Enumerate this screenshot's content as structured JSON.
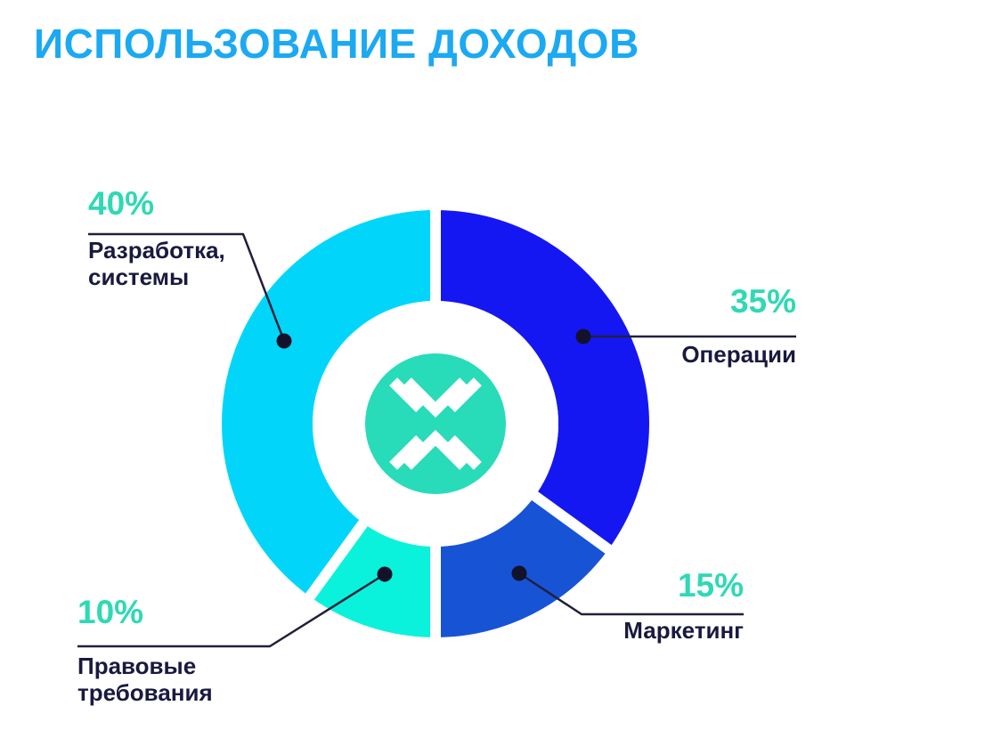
{
  "page": {
    "title": "ИСПОЛЬЗОВАНИЕ ДОХОДОВ",
    "title_color": "#1BA9F2",
    "background": "#ffffff"
  },
  "chart_data": {
    "type": "pie",
    "subtype": "donut",
    "title": "ИСПОЛЬЗОВАНИЕ ДОХОДОВ",
    "start_angle_deg": 0,
    "direction": "clockwise",
    "segments": [
      {
        "label": "Операции",
        "value_pct": 35,
        "percent_label": "35%",
        "color": "#1517F2"
      },
      {
        "label": "Маркетинг",
        "value_pct": 15,
        "percent_label": "15%",
        "color": "#1753D5"
      },
      {
        "label": "Правовые требования",
        "value_pct": 10,
        "percent_label": "10%",
        "color": "#0BF2DC"
      },
      {
        "label": "Разработка, системы",
        "value_pct": 40,
        "percent_label": "40%",
        "color": "#01D6FA"
      }
    ],
    "center_logo": "x-logo",
    "center_logo_circle_color": "#28DBB9",
    "center_logo_glyph_color": "#ffffff",
    "percent_text_color": "#2ED9B4",
    "label_text_color": "#191940",
    "callout_line_color": "#20203C",
    "callout_dot_color": "#12122A",
    "segment_gap_color": "#ffffff"
  }
}
